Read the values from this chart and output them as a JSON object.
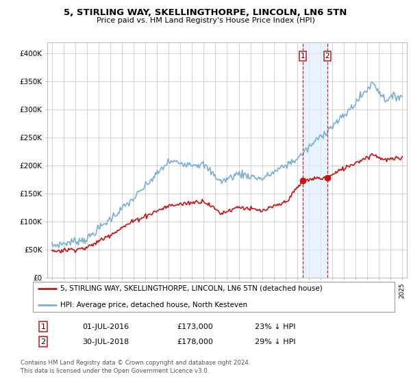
{
  "title": "5, STIRLING WAY, SKELLINGTHORPE, LINCOLN, LN6 5TN",
  "subtitle": "Price paid vs. HM Land Registry's House Price Index (HPI)",
  "hpi_color": "#7bafd4",
  "price_color": "#cc1111",
  "vline_color": "#cc1111",
  "sale1_date": 2016.5,
  "sale1_price": 173000,
  "sale2_date": 2018.58,
  "sale2_price": 178000,
  "ylim": [
    0,
    420000
  ],
  "yticks": [
    0,
    50000,
    100000,
    150000,
    200000,
    250000,
    300000,
    350000,
    400000
  ],
  "ytick_labels": [
    "£0",
    "£50K",
    "£100K",
    "£150K",
    "£200K",
    "£250K",
    "£300K",
    "£350K",
    "£400K"
  ],
  "legend_line1": "5, STIRLING WAY, SKELLINGTHORPE, LINCOLN, LN6 5TN (detached house)",
  "legend_line2": "HPI: Average price, detached house, North Kesteven",
  "table_row1": [
    "1",
    "01-JUL-2016",
    "£173,000",
    "23% ↓ HPI"
  ],
  "table_row2": [
    "2",
    "30-JUL-2018",
    "£178,000",
    "29% ↓ HPI"
  ],
  "footnote": "Contains HM Land Registry data © Crown copyright and database right 2024.\nThis data is licensed under the Open Government Licence v3.0.",
  "background_color": "#ffffff",
  "grid_color": "#cccccc",
  "span_color": "#ddeeff"
}
